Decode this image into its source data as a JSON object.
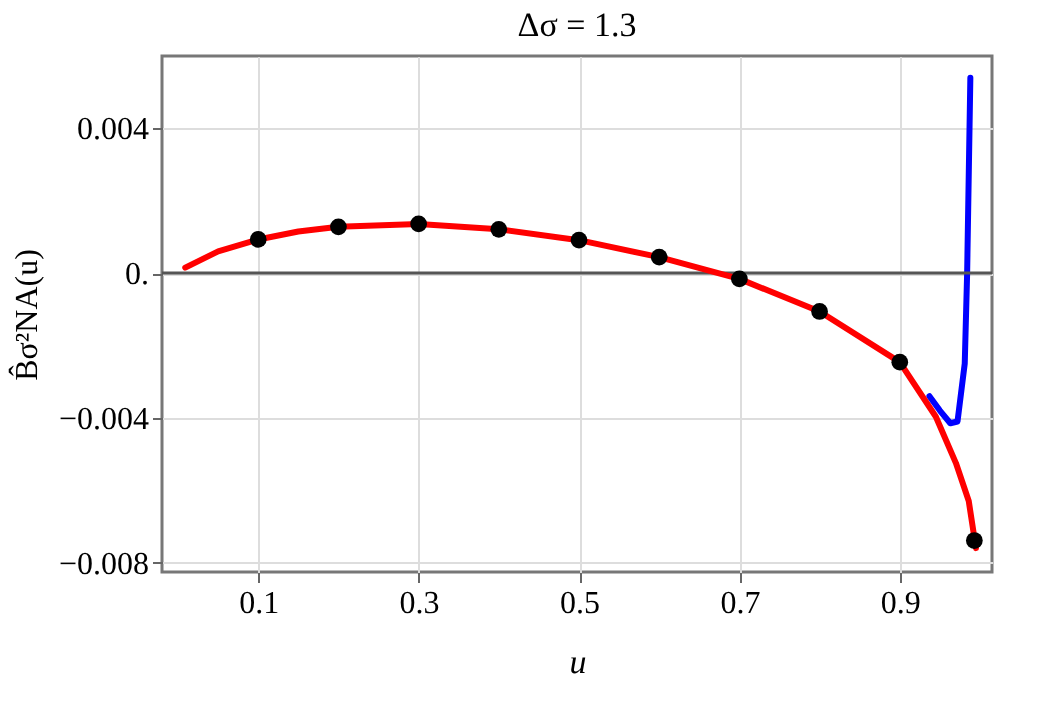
{
  "chart_data": {
    "type": "line",
    "title": "Δσ = 1.3",
    "xlabel": "u",
    "ylabel": "B̂σ²NA(u)",
    "xlim": [
      -0.02,
      1.015
    ],
    "ylim": [
      -0.00826,
      0.006
    ],
    "xticks": [
      0.1,
      0.3,
      0.5,
      0.7,
      0.9
    ],
    "yticks": [
      {
        "value": -0.008,
        "label": "−0.008"
      },
      {
        "value": -0.004,
        "label": "−0.004"
      },
      {
        "value": 0,
        "label": "0."
      },
      {
        "value": 0.004,
        "label": "0.004"
      }
    ],
    "grid": true,
    "line_style": "solid",
    "ref_lines": [
      {
        "axis": "y",
        "value": 0,
        "color": "#555555"
      }
    ],
    "series": [
      {
        "color": "#0000ff",
        "x": [
          0.937,
          0.95,
          0.963,
          0.972,
          0.981,
          0.984,
          0.988
        ],
        "values": [
          -0.0034,
          -0.0038,
          -0.00415,
          -0.0041,
          -0.0025,
          0.0,
          0.0054
        ]
      },
      {
        "color": "#ff0000",
        "x": [
          0.009,
          0.05,
          0.1,
          0.15,
          0.2,
          0.3,
          0.4,
          0.5,
          0.6,
          0.7,
          0.8,
          0.9,
          0.945,
          0.97,
          0.986,
          0.995
        ],
        "values": [
          0.00015,
          0.0006,
          0.00093,
          0.00115,
          0.00128,
          0.00136,
          0.00121,
          0.00091,
          0.00044,
          -0.00016,
          -0.00106,
          -0.00246,
          -0.00397,
          -0.00525,
          -0.0063,
          -0.0076
        ]
      },
      {
        "type": "scatter",
        "marker": "circle",
        "color": "#000000",
        "x": [
          0.1,
          0.2,
          0.3,
          0.4,
          0.5,
          0.6,
          0.7,
          0.8,
          0.9,
          0.993
        ],
        "values": [
          0.00093,
          0.00128,
          0.00136,
          0.00121,
          0.00091,
          0.00044,
          -0.00016,
          -0.00106,
          -0.00246,
          -0.00739
        ]
      }
    ]
  }
}
